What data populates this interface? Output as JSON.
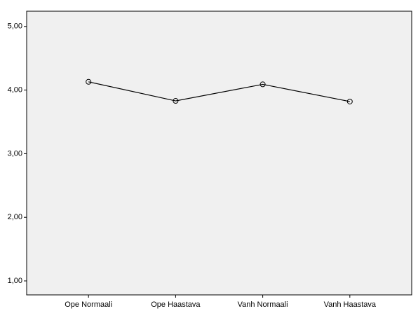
{
  "chart_data": {
    "type": "line",
    "categories": [
      "Ope Normaali",
      "Ope Haastava",
      "Vanh Normaali",
      "Vanh Haastava"
    ],
    "values": [
      4.13,
      3.83,
      4.09,
      3.82
    ],
    "color": "#000000",
    "ylim": [
      0.78,
      5.24
    ],
    "yticks": [
      {
        "value": 1,
        "label": "1,00"
      },
      {
        "value": 2,
        "label": "2,00"
      },
      {
        "value": 3,
        "label": "3,00"
      },
      {
        "value": 4,
        "label": "4,00"
      },
      {
        "value": 5,
        "label": "5,00"
      }
    ],
    "grid": false
  }
}
